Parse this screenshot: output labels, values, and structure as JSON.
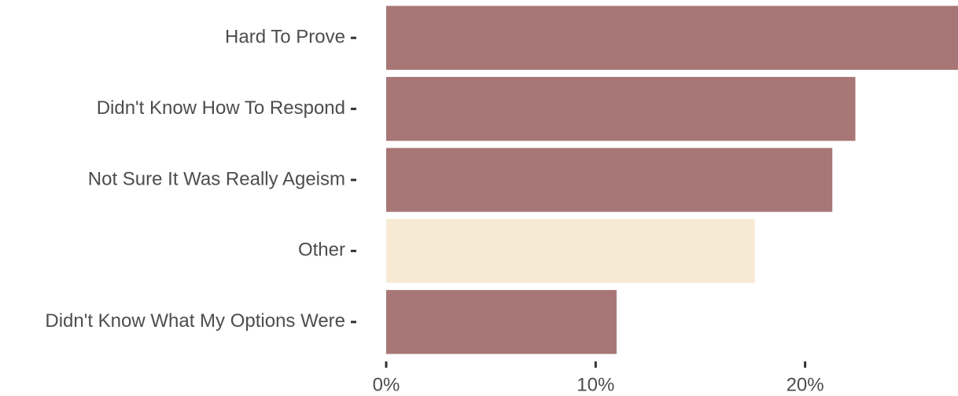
{
  "chart_data": {
    "type": "hbar",
    "categories": [
      "Hard To Prove",
      "Didn't Know How To Respond",
      "Not Sure It Was Really Ageism",
      "Other",
      "Didn't Know What My Options Were"
    ],
    "values": [
      27.3,
      22.4,
      21.3,
      17.6,
      11.0
    ],
    "colors": [
      "#a87676",
      "#a87676",
      "#a87676",
      "#f7ead5",
      "#a87676"
    ],
    "xlim": [
      0,
      27.3
    ],
    "xticks": [
      {
        "value": 0,
        "label": "0%"
      },
      {
        "value": 10,
        "label": "10%"
      },
      {
        "value": 20,
        "label": "20%"
      }
    ],
    "grid": false
  }
}
